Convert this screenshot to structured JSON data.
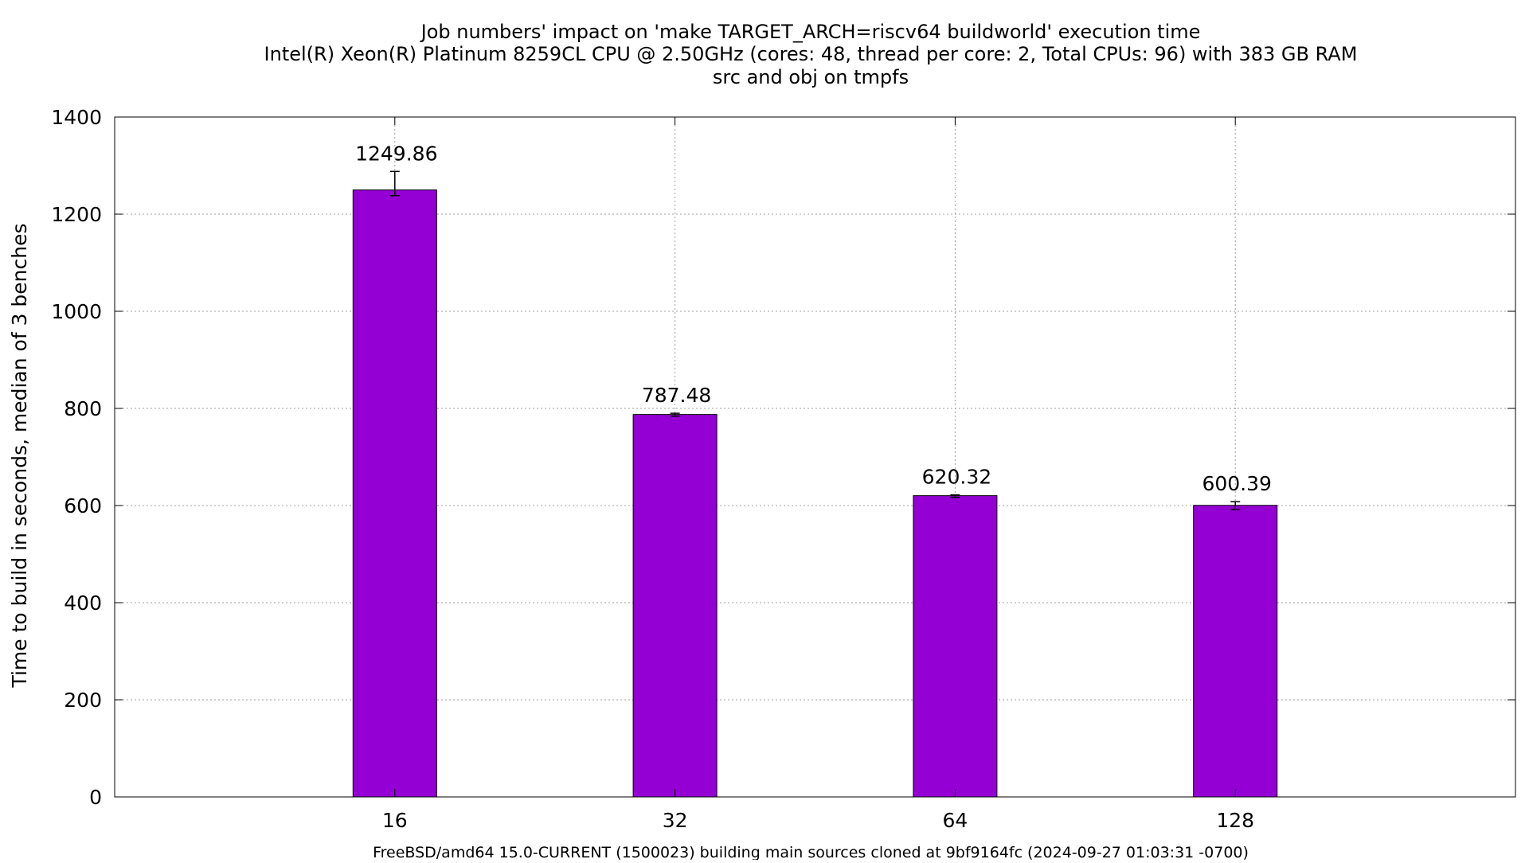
{
  "chart_data": {
    "type": "bar",
    "title": [
      "Job numbers' impact on 'make TARGET_ARCH=riscv64 buildworld' execution time",
      "Intel(R) Xeon(R) Platinum 8259CL CPU @ 2.50GHz (cores: 48, thread per core: 2, Total CPUs: 96) with 383 GB RAM",
      "src and obj on tmpfs"
    ],
    "xlabel": "FreeBSD/amd64 15.0-CURRENT (1500023) building main sources cloned at 9bf9164fc (2024-09-27 01:03:31 -0700)",
    "ylabel": "Time to build in seconds, median of 3 benches",
    "categories": [
      "16",
      "32",
      "64",
      "128"
    ],
    "values": [
      1249.86,
      787.48,
      620.32,
      600.39
    ],
    "value_labels": [
      "1249.86",
      "787.48",
      "620.32",
      "600.39"
    ],
    "error_bars": [
      [
        1238,
        1288
      ],
      [
        784,
        790
      ],
      [
        617,
        622
      ],
      [
        592,
        608
      ]
    ],
    "ylim": [
      0,
      1400
    ],
    "yticks": [
      0,
      200,
      400,
      600,
      800,
      1000,
      1200,
      1400
    ],
    "xlim": [
      -1,
      4
    ],
    "grid": true,
    "legend": "none",
    "bar_color": "#9400d3"
  }
}
